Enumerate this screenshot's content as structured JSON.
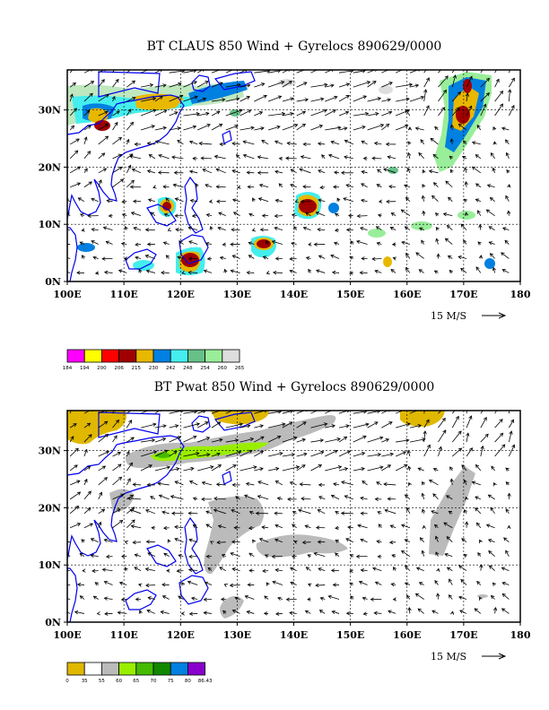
{
  "panels": [
    {
      "id": "claus",
      "title": "BT CLAUS 850 Wind + Gyrelocs 890629/0000",
      "x_ticks": [
        "100E",
        "110E",
        "120E",
        "130E",
        "140E",
        "150E",
        "160E",
        "170E",
        "180"
      ],
      "y_ticks": [
        "0N",
        "10N",
        "20N",
        "30N"
      ],
      "reference_vector": "15 M/S",
      "colorbar": {
        "labels": [
          "184",
          "194",
          "200",
          "206",
          "215",
          "230",
          "242",
          "248",
          "254",
          "260",
          "265"
        ],
        "colors": [
          "#ff00ff",
          "#ffff00",
          "#ff0000",
          "#a00000",
          "#e8b800",
          "#0080e0",
          "#44eeee",
          "#66c088",
          "#99ee99",
          "#dddddd"
        ]
      }
    },
    {
      "id": "pwat",
      "title": "BT Pwat 850 Wind + Gyrelocs 890629/0000",
      "x_ticks": [
        "100E",
        "110E",
        "120E",
        "130E",
        "140E",
        "150E",
        "160E",
        "170E",
        "180"
      ],
      "y_ticks": [
        "0N",
        "10N",
        "20N",
        "30N"
      ],
      "reference_vector": "15 M/S",
      "colorbar": {
        "labels": [
          "0",
          "35",
          "55",
          "60",
          "65",
          "70",
          "75",
          "80",
          "86.43"
        ],
        "colors": [
          "#e0b800",
          "#ffffff",
          "#bbbbbb",
          "#99ee00",
          "#44bb00",
          "#118800",
          "#0080e0",
          "#8800cc"
        ]
      }
    }
  ],
  "colors": {
    "coast": "#0000ee",
    "arrow": "#000000",
    "grid": "#000000"
  }
}
